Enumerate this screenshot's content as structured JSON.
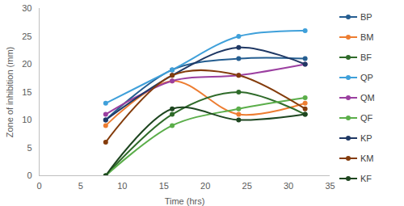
{
  "chart_data": {
    "type": "line",
    "xlabel": "Time (hrs)",
    "ylabel": "Zone of inhibition (mm)",
    "x": [
      8,
      16,
      24,
      32
    ],
    "xlim": [
      0,
      35
    ],
    "xticks": [
      0,
      5,
      10,
      15,
      20,
      25,
      30,
      35
    ],
    "ylim": [
      0,
      30
    ],
    "yticks": [
      0,
      5,
      10,
      15,
      20,
      25,
      30
    ],
    "grid": false,
    "legend": "right",
    "marker": "circle",
    "line_style": "smooth",
    "series": [
      {
        "name": "BP",
        "color": "#255E91",
        "values": [
          10,
          19,
          21,
          21
        ]
      },
      {
        "name": "BM",
        "color": "#ED7D31",
        "values": [
          9,
          17,
          11,
          13
        ]
      },
      {
        "name": "BF",
        "color": "#2F6B2A",
        "values": [
          0,
          11,
          15,
          11
        ]
      },
      {
        "name": "QP",
        "color": "#3FA0DA",
        "values": [
          13,
          19,
          25,
          26
        ]
      },
      {
        "name": "QM",
        "color": "#9B3FA0",
        "values": [
          11,
          17,
          18,
          20
        ]
      },
      {
        "name": "QF",
        "color": "#5BAE4A",
        "values": [
          0,
          9,
          12,
          14
        ]
      },
      {
        "name": "KP",
        "color": "#1F3864",
        "values": [
          10,
          18,
          23,
          20
        ]
      },
      {
        "name": "KM",
        "color": "#843C0C",
        "values": [
          6,
          18,
          18,
          12
        ]
      },
      {
        "name": "KF",
        "color": "#1E4620",
        "values": [
          0,
          12,
          10,
          11
        ]
      }
    ]
  }
}
